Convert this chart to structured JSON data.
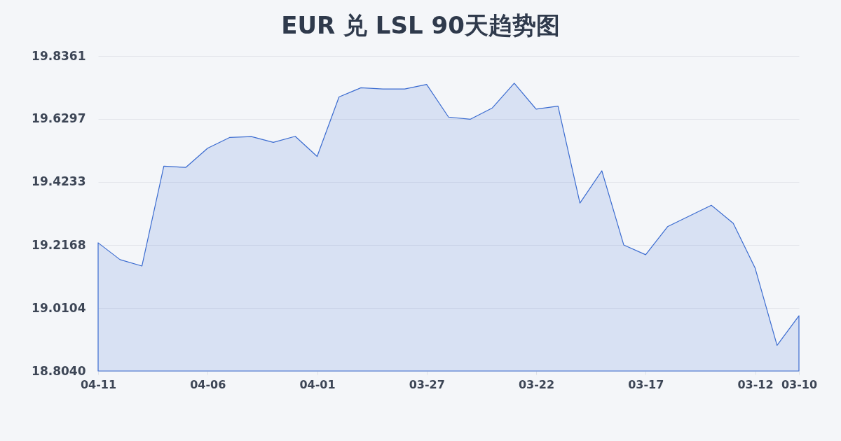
{
  "chart_data": {
    "type": "area",
    "title": "EUR 兑 LSL 90天趋势图",
    "categories": [
      "04-11",
      null,
      null,
      null,
      null,
      "04-06",
      null,
      null,
      null,
      null,
      "04-01",
      null,
      null,
      null,
      null,
      "03-27",
      null,
      null,
      null,
      null,
      "03-22",
      null,
      null,
      null,
      null,
      "03-17",
      null,
      null,
      null,
      null,
      "03-12",
      null,
      "03-10"
    ],
    "series": [
      {
        "color": "#3a6bd0",
        "values": [
          19.224,
          19.169,
          19.148,
          19.475,
          19.471,
          19.534,
          19.569,
          19.572,
          19.553,
          19.573,
          19.507,
          19.702,
          19.732,
          19.728,
          19.728,
          19.743,
          19.636,
          19.629,
          19.666,
          19.747,
          19.662,
          19.672,
          19.354,
          19.46,
          19.217,
          19.185,
          19.277,
          19.312,
          19.347,
          19.288,
          19.141,
          18.888,
          18.985
        ]
      }
    ],
    "ylim": [
      18.804,
      19.8361
    ],
    "yticks": [
      {
        "value": 18.804,
        "label": "18.8040"
      },
      19.0104,
      19.2168,
      19.4233,
      19.6297,
      19.8361
    ],
    "grid": "y"
  }
}
